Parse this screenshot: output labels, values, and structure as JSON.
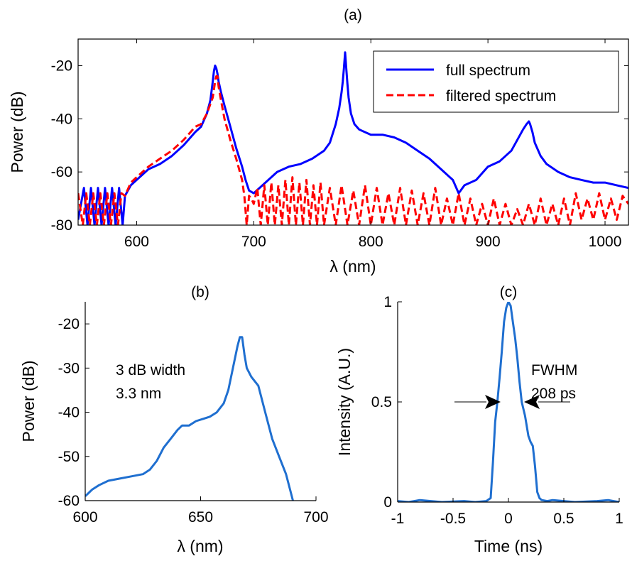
{
  "chart_data": [
    {
      "id": "a",
      "type": "line",
      "title": "(a)",
      "xlabel": "λ (nm)",
      "ylabel": "Power (dB)",
      "xlim": [
        550,
        1020
      ],
      "ylim": [
        -80,
        -10
      ],
      "xticks": [
        600,
        700,
        800,
        900,
        1000
      ],
      "yticks": [
        -80,
        -60,
        -40,
        -20
      ],
      "grid": false,
      "legend": "top-right",
      "series": [
        {
          "name": "full spectrum",
          "color": "#0000ff",
          "style": "solid",
          "x": [
            550,
            555,
            558,
            561,
            564,
            567,
            570,
            573,
            576,
            579,
            582,
            585,
            588,
            590,
            595,
            600,
            610,
            620,
            630,
            640,
            650,
            655,
            660,
            663,
            665,
            666,
            667,
            668,
            669,
            670,
            672,
            675,
            680,
            685,
            690,
            693,
            696,
            700,
            710,
            720,
            730,
            740,
            750,
            760,
            765,
            770,
            773,
            775,
            776,
            777,
            778,
            779,
            780,
            781,
            783,
            786,
            790,
            800,
            810,
            820,
            830,
            840,
            850,
            860,
            870,
            875,
            880,
            890,
            900,
            910,
            920,
            925,
            930,
            933,
            935,
            936,
            938,
            940,
            945,
            950,
            960,
            970,
            980,
            990,
            1000,
            1010,
            1020
          ],
          "y": [
            -78,
            -66,
            -80,
            -66,
            -80,
            -66,
            -80,
            -66,
            -80,
            -66,
            -80,
            -66,
            -80,
            -69,
            -65,
            -63,
            -59,
            -57,
            -54,
            -50,
            -45,
            -43,
            -38,
            -33,
            -26,
            -22,
            -20,
            -21,
            -23,
            -26,
            -30,
            -35,
            -43,
            -51,
            -58,
            -63,
            -67,
            -68,
            -64,
            -60,
            -58,
            -57,
            -55,
            -52,
            -49,
            -42,
            -36,
            -30,
            -26,
            -21,
            -15,
            -21,
            -27,
            -32,
            -38,
            -42,
            -44,
            -46,
            -46,
            -47,
            -49,
            -52,
            -55,
            -59,
            -63,
            -68,
            -65,
            -63,
            -58,
            -56,
            -52,
            -48,
            -44,
            -42,
            -41,
            -42,
            -45,
            -49,
            -54,
            -57,
            -60,
            -62,
            -63,
            -64,
            -64,
            -65,
            -66
          ]
        },
        {
          "name": "filtered spectrum",
          "color": "#ff0000",
          "style": "dashed",
          "x": [
            550,
            554,
            557,
            560,
            563,
            566,
            569,
            572,
            575,
            578,
            581,
            584,
            587,
            590,
            595,
            600,
            610,
            620,
            630,
            640,
            650,
            655,
            660,
            665,
            667,
            668,
            669,
            670,
            672,
            675,
            680,
            685,
            690,
            692,
            694,
            696,
            698,
            700,
            703,
            706,
            709,
            712,
            715,
            718,
            721,
            724,
            727,
            730,
            733,
            736,
            739,
            742,
            745,
            748,
            751,
            754,
            757,
            760,
            765,
            770,
            775,
            780,
            785,
            790,
            795,
            800,
            805,
            810,
            815,
            820,
            825,
            830,
            835,
            840,
            845,
            850,
            855,
            860,
            865,
            870,
            875,
            880,
            885,
            890,
            895,
            900,
            905,
            910,
            915,
            920,
            925,
            930,
            935,
            940,
            945,
            950,
            955,
            960,
            965,
            970,
            975,
            980,
            985,
            990,
            995,
            1000,
            1005,
            1010,
            1015,
            1020
          ],
          "y": [
            -68,
            -80,
            -68,
            -80,
            -68,
            -80,
            -68,
            -80,
            -68,
            -80,
            -68,
            -80,
            -68,
            -69,
            -64,
            -62,
            -58,
            -55,
            -52,
            -48,
            -43,
            -42,
            -38,
            -32,
            -26,
            -24,
            -24,
            -28,
            -33,
            -40,
            -48,
            -55,
            -63,
            -69,
            -80,
            -69,
            -70,
            -72,
            -66,
            -80,
            -65,
            -80,
            -64,
            -80,
            -65,
            -80,
            -63,
            -80,
            -62,
            -80,
            -64,
            -80,
            -63,
            -80,
            -65,
            -80,
            -64,
            -80,
            -66,
            -80,
            -65,
            -80,
            -67,
            -80,
            -65,
            -80,
            -66,
            -80,
            -68,
            -80,
            -66,
            -80,
            -67,
            -80,
            -68,
            -80,
            -66,
            -80,
            -70,
            -80,
            -68,
            -80,
            -70,
            -80,
            -72,
            -80,
            -70,
            -80,
            -72,
            -80,
            -74,
            -80,
            -72,
            -80,
            -70,
            -80,
            -72,
            -80,
            -70,
            -80,
            -68,
            -78,
            -70,
            -78,
            -68,
            -78,
            -70,
            -78,
            -69,
            -72
          ]
        }
      ]
    },
    {
      "id": "b",
      "type": "line",
      "title": "(b)",
      "xlabel": "λ (nm)",
      "ylabel": "Power (dB)",
      "xlim": [
        600,
        700
      ],
      "ylim": [
        -60,
        -15
      ],
      "xticks": [
        600,
        650,
        700
      ],
      "yticks": [
        -60,
        -50,
        -40,
        -30,
        -20
      ],
      "grid": false,
      "annotations": [
        "3 dB width",
        "3.3 nm"
      ],
      "series": [
        {
          "color": "#1f6fd0",
          "x": [
            600,
            603,
            606,
            610,
            615,
            620,
            625,
            628,
            631,
            634,
            637,
            640,
            642,
            645,
            648,
            651,
            654,
            657,
            660,
            662,
            664,
            666,
            667,
            668,
            669,
            670,
            672,
            675,
            678,
            681,
            684,
            687,
            689,
            690
          ],
          "y": [
            -59,
            -57.5,
            -56.5,
            -55.5,
            -55,
            -54.5,
            -54,
            -53,
            -51,
            -48,
            -46,
            -44,
            -43,
            -43,
            -42,
            -41.5,
            -41,
            -40,
            -38,
            -35,
            -30,
            -25,
            -23,
            -23,
            -27,
            -30,
            -32,
            -34,
            -40,
            -46,
            -50,
            -54,
            -58,
            -60
          ]
        }
      ]
    },
    {
      "id": "c",
      "type": "line",
      "title": "(c)",
      "xlabel": "Time (ns)",
      "ylabel": "Intensity (A.U.)",
      "xlim": [
        -1,
        1
      ],
      "ylim": [
        0,
        1
      ],
      "xticks": [
        -1,
        -0.5,
        0,
        0.5,
        1
      ],
      "xtick_labels": [
        "-1",
        "-0.5",
        "0",
        "0.5",
        "1"
      ],
      "yticks": [
        0,
        0.5,
        1
      ],
      "grid": false,
      "annotations": [
        "FWHM",
        "208 ps"
      ],
      "series": [
        {
          "color": "#1f6fd0",
          "x": [
            -1,
            -0.9,
            -0.8,
            -0.6,
            -0.4,
            -0.3,
            -0.2,
            -0.16,
            -0.14,
            -0.12,
            -0.1,
            -0.08,
            -0.06,
            -0.04,
            -0.02,
            0,
            0.02,
            0.04,
            0.06,
            0.08,
            0.1,
            0.12,
            0.15,
            0.18,
            0.2,
            0.22,
            0.24,
            0.26,
            0.28,
            0.3,
            0.35,
            0.4,
            0.6,
            0.8,
            0.9,
            1
          ],
          "y": [
            0.005,
            0.0,
            0.01,
            0.0,
            0.005,
            0.0,
            0.005,
            0.02,
            0.2,
            0.4,
            0.5,
            0.62,
            0.75,
            0.9,
            0.97,
            1.0,
            0.98,
            0.9,
            0.82,
            0.72,
            0.6,
            0.5,
            0.43,
            0.33,
            0.3,
            0.28,
            0.18,
            0.05,
            0.02,
            0.01,
            0.005,
            0.01,
            0.0,
            0.005,
            0.01,
            0.0
          ]
        }
      ]
    }
  ]
}
